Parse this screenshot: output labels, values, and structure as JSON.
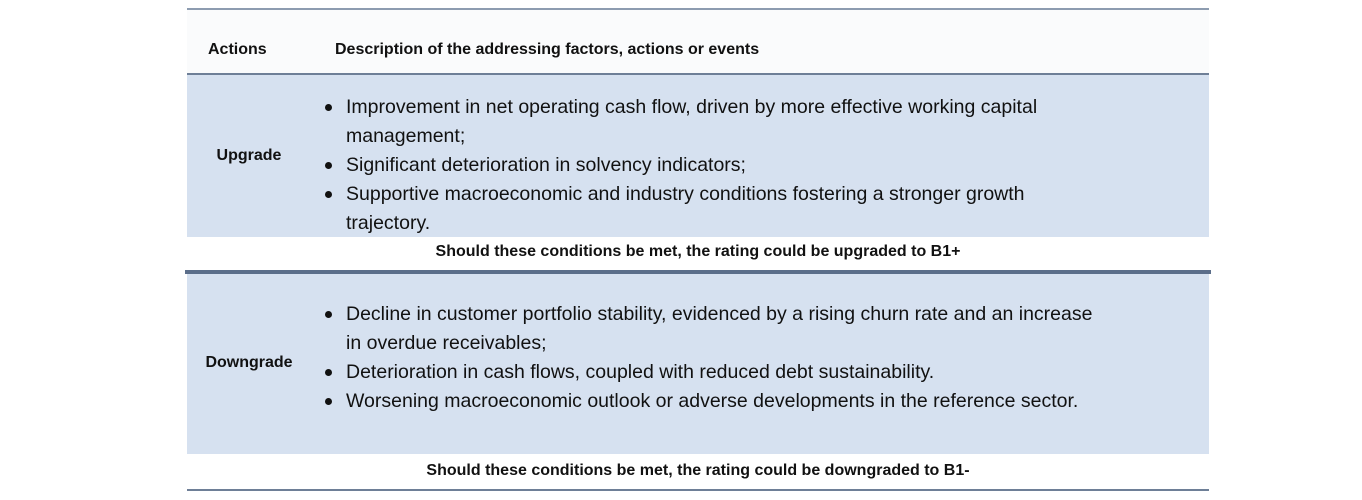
{
  "table": {
    "headers": {
      "actions": "Actions",
      "description": "Description of the addressing factors, actions or events"
    },
    "rows": [
      {
        "action": "Upgrade",
        "bullets": [
          "Improvement in net operating cash flow, driven by more effective working capital management;",
          "Significant deterioration in solvency indicators;",
          "Supportive macroeconomic and industry conditions  fostering a stronger growth trajectory."
        ],
        "conclusion": "Should these conditions be met, the rating could be upgraded to B1+"
      },
      {
        "action": "Downgrade",
        "bullets": [
          "Decline in customer portfolio stability, evidenced by a rising churn rate and an increase in overdue receivables;",
          "Deterioration in cash flows, coupled with reduced debt sustainability.",
          "Worsening macroeconomic outlook or adverse developments in the reference sector."
        ],
        "conclusion": "Should these conditions be met, the rating could be downgraded to B1-"
      }
    ]
  },
  "colors": {
    "band": "#d6e1f0",
    "rule": "#6e7f97",
    "text": "#111111"
  }
}
